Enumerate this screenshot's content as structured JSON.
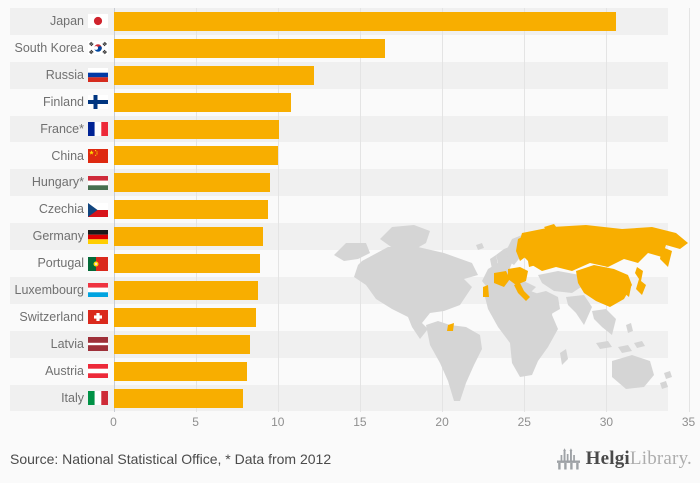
{
  "chart_data": {
    "type": "bar",
    "orientation": "horizontal",
    "title": "",
    "xlabel": "",
    "ylabel": "",
    "xlim": [
      0,
      35
    ],
    "x_ticks": [
      0,
      5,
      10,
      15,
      20,
      25,
      30,
      35
    ],
    "grid": "vertical",
    "categories": [
      "Japan",
      "South Korea",
      "Russia",
      "Finland",
      "France*",
      "China",
      "Hungary*",
      "Czechia",
      "Germany",
      "Portugal",
      "Luxembourg",
      "Switzerland",
      "Latvia",
      "Austria",
      "Italy"
    ],
    "values": [
      30.6,
      16.5,
      12.2,
      10.8,
      10.1,
      10.0,
      9.5,
      9.4,
      9.1,
      8.9,
      8.8,
      8.7,
      8.3,
      8.1,
      7.9
    ],
    "flags": [
      "japan",
      "south-korea",
      "russia",
      "finland",
      "france",
      "china",
      "hungary",
      "czechia",
      "germany",
      "portugal",
      "luxembourg",
      "switzerland",
      "latvia",
      "austria",
      "italy"
    ],
    "bar_color": "#f8ae00",
    "row_band_color": "#f0f0f0",
    "background_color": "#fafafa",
    "map": {
      "base_color": "#d5d5d5",
      "highlight_color": "#f8ae00",
      "highlighted_regions": [
        "Russia",
        "China",
        "Japan",
        "South Korea",
        "Finland",
        "France",
        "Portugal",
        "Italy",
        "Central Europe",
        "Baltics",
        "French Guiana"
      ]
    }
  },
  "footer": {
    "source_text": "Source: National Statistical Office, * Data from 2012",
    "logo": {
      "icon": "bridge-icon",
      "brand_primary": "Helgi",
      "brand_secondary": "Library."
    }
  }
}
